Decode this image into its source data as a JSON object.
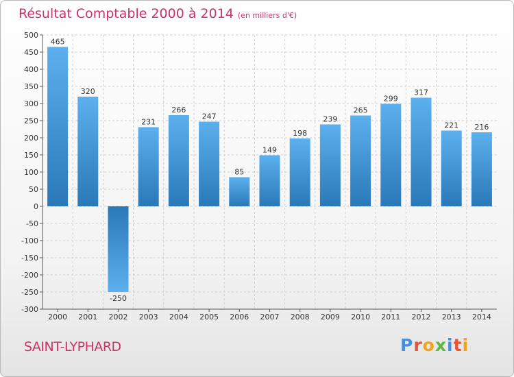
{
  "title": "Résultat Comptable 2000 à 2014",
  "subtitle": "(en milliers d'€)",
  "town": "SAINT-LYPHARD",
  "logo": {
    "letters": [
      "P",
      "r",
      "o",
      "x",
      "i",
      "t",
      "i"
    ],
    "colors": [
      "#4a90d9",
      "#e8533a",
      "#f3a31b",
      "#5fb83d",
      "#4a90d9",
      "#e8533a",
      "#f3a31b"
    ]
  },
  "colors": {
    "bar_top": "#5cb0ee",
    "bar_bottom": "#2a78b8",
    "grid": "#cfcfcf",
    "title": "#cc3366"
  },
  "chart_data": {
    "type": "bar",
    "categories": [
      "2000",
      "2001",
      "2002",
      "2003",
      "2004",
      "2005",
      "2006",
      "2007",
      "2008",
      "2009",
      "2010",
      "2011",
      "2012",
      "2013",
      "2014"
    ],
    "values": [
      465,
      320,
      -250,
      231,
      266,
      247,
      85,
      149,
      198,
      239,
      265,
      299,
      317,
      221,
      216
    ],
    "value_labels": [
      "465",
      "320",
      "-250",
      "231",
      "266",
      "247",
      "85",
      "149",
      "198",
      "239",
      "265",
      "299",
      "317",
      "221",
      "216"
    ],
    "yticks": [
      500,
      450,
      400,
      350,
      300,
      250,
      200,
      150,
      100,
      50,
      0,
      -50,
      -100,
      -150,
      -200,
      -250,
      -300
    ],
    "ytick_labels": [
      "500",
      "450",
      "400",
      "350",
      "300",
      "250",
      "200",
      "150",
      "100",
      "50",
      "0",
      "-50",
      "-100",
      "-150",
      "-200",
      "-250",
      "-300"
    ],
    "ylim": [
      -300,
      500
    ],
    "grid": true
  }
}
